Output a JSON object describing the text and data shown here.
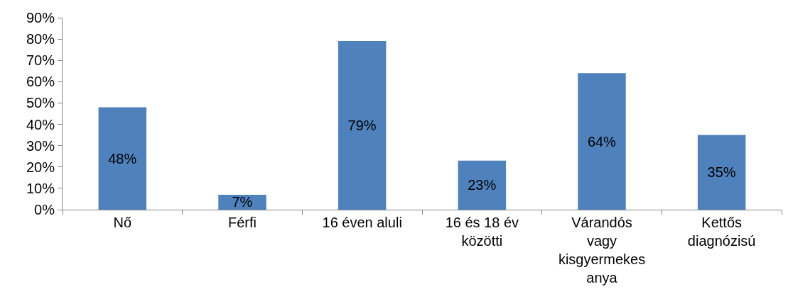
{
  "chart_data": {
    "type": "bar",
    "categories": [
      "Nő",
      "Férfi",
      "16 éven aluli",
      "16 és 18 év közötti",
      "Várandós vagy kisgyermekes anya",
      "Kettős diagnózisú"
    ],
    "values": [
      48,
      7,
      79,
      23,
      64,
      35
    ],
    "value_labels": [
      "48%",
      "7%",
      "79%",
      "23%",
      "64%",
      "35%"
    ],
    "color": "#4f81bd",
    "ylim": [
      0,
      90
    ],
    "yticks": [
      {
        "value": 0,
        "label": "0%"
      },
      {
        "value": 10,
        "label": "10%"
      },
      {
        "value": 20,
        "label": "20%"
      },
      {
        "value": 30,
        "label": "30%"
      },
      {
        "value": 40,
        "label": "40%"
      },
      {
        "value": 50,
        "label": "50%"
      },
      {
        "value": 60,
        "label": "60%"
      },
      {
        "value": 70,
        "label": "70%"
      },
      {
        "value": 80,
        "label": "80%"
      },
      {
        "value": 90,
        "label": "90%"
      }
    ]
  }
}
